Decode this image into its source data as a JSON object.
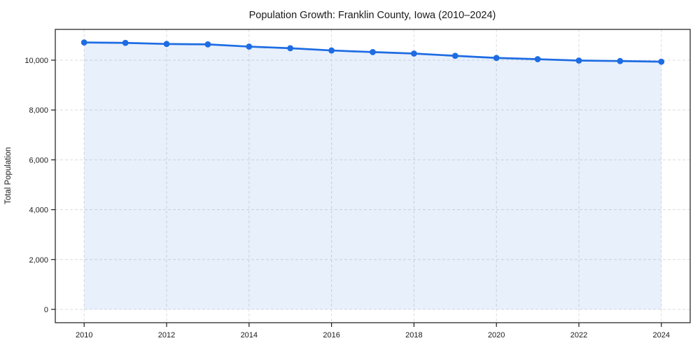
{
  "figure": {
    "background": "#ffffff"
  },
  "chart_data": {
    "type": "area",
    "title": "Population Growth: Franklin County, Iowa (2010–2024)",
    "xlabel": "",
    "ylabel": "Total Population",
    "x": [
      2010,
      2011,
      2012,
      2013,
      2014,
      2015,
      2016,
      2017,
      2018,
      2019,
      2020,
      2021,
      2022,
      2023,
      2024
    ],
    "series": [
      {
        "name": "Total Population",
        "values": [
          10710,
          10695,
          10650,
          10635,
          10545,
          10480,
          10390,
          10325,
          10265,
          10175,
          10090,
          10040,
          9985,
          9965,
          9940
        ]
      }
    ],
    "xlim": [
      2009.3,
      2024.7
    ],
    "ylim": [
      -535,
      11235
    ],
    "xticks": [
      2010,
      2012,
      2014,
      2016,
      2018,
      2020,
      2022,
      2024
    ],
    "xtick_labels": [
      "2010",
      "2012",
      "2014",
      "2016",
      "2018",
      "2020",
      "2022",
      "2024"
    ],
    "yticks": [
      0,
      2000,
      4000,
      6000,
      8000,
      10000
    ],
    "ytick_labels": [
      "0",
      "2,000",
      "4,000",
      "6,000",
      "8,000",
      "10,000"
    ],
    "grid": true,
    "grid_style": "dashed",
    "legend": "none",
    "line_color": "#1e6ce3",
    "marker": "circle",
    "fill_color": "#1e6ce3",
    "fill_alpha": 0.1,
    "grid_color": "#dcdcdc",
    "spine_color": "#1a1a1a",
    "tick_label_color": "#1a1a1a",
    "background_color": "#ffffff"
  }
}
